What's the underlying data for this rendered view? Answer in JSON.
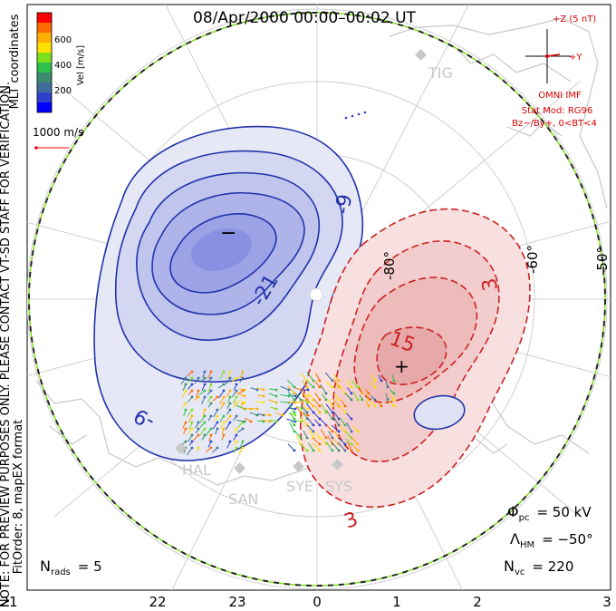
{
  "title": "08/Apr/2000 00:00–00:02 UT",
  "colorbar": {
    "label": "Vel [m/s]",
    "ticks": [
      "600",
      "400",
      "200"
    ],
    "colors": [
      "#ff0000",
      "#ff6a00",
      "#ffb000",
      "#ffe000",
      "#7ddf1c",
      "#2fbf4a",
      "#3b8a6e",
      "#3f6e9e",
      "#2e3fcf",
      "#0000ff"
    ]
  },
  "coordinate_system": "MLT coordinates",
  "vector_scale": "1000 m/s",
  "imf": {
    "z_label": "+Z (5 nT)",
    "y_label": "+Y",
    "source": "OMNI IMF",
    "stat_mod": "Stat Mod: RG96",
    "condition": "Bz−/By+, 0<BT<4"
  },
  "side_notes": {
    "preview": "NOTE: FOR PREVIEW PURPOSES ONLY. PLEASE CONTACT VT-SD STAFF FOR VERIFICATION.",
    "fit": "FitOrder: 8, mapEX format"
  },
  "latitude_labels": [
    "-80°",
    "-60°",
    "-50°"
  ],
  "mlt_labels": [
    "21",
    "22",
    "23",
    "0",
    "1",
    "2",
    "3"
  ],
  "contour_labels": [
    "-9",
    "-21",
    "-9",
    "3",
    "15",
    "3"
  ],
  "extrema_marks": {
    "minimum": "−",
    "maximum": "+"
  },
  "stations": [
    "TIG",
    "HAL",
    "SAN",
    "SYE",
    "SYS"
  ],
  "stats": {
    "phi_pc": {
      "symbol": "Φ",
      "sub": "pc",
      "value": "= 50 kV"
    },
    "lambda_hm": {
      "symbol": "Λ",
      "sub": "HM",
      "value": "= −50°"
    },
    "n_vc": {
      "symbol": "N",
      "sub": "vc",
      "value": "= 220"
    },
    "n_rads": {
      "symbol": "N",
      "sub": "rads",
      "value": "= 5"
    }
  }
}
